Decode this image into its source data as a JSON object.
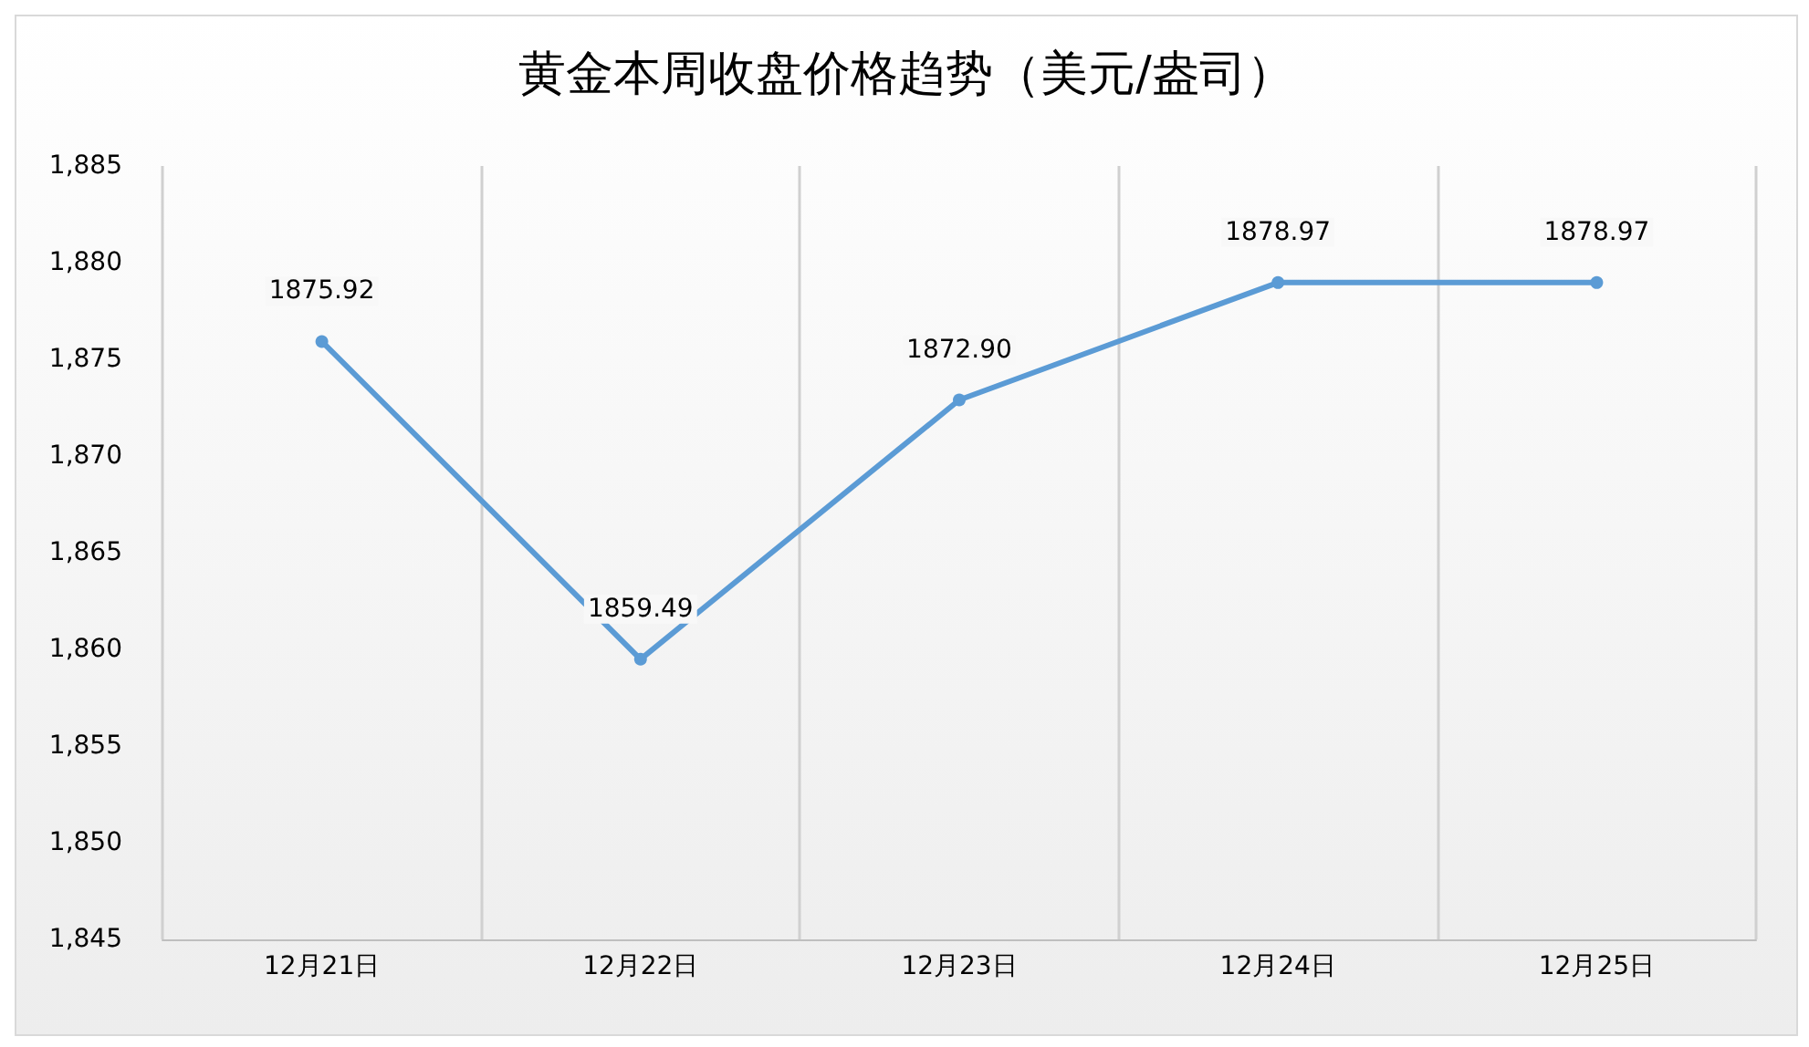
{
  "chart_data": {
    "type": "line",
    "title": "黄金本周收盘价格趋势（美元/盎司）",
    "categories": [
      "12月21日",
      "12月22日",
      "12月23日",
      "12月24日",
      "12月25日"
    ],
    "series": [
      {
        "color": "#5b9bd5",
        "values": [
          1875.92,
          1859.49,
          1872.9,
          1878.97,
          1878.97
        ],
        "value_labels": [
          "1875.92",
          "1859.49",
          "1872.90",
          "1878.97",
          "1878.97"
        ]
      }
    ],
    "ylim": [
      1845,
      1885
    ],
    "yticks": [
      {
        "value": 1845,
        "label": "1,845"
      },
      {
        "value": 1850,
        "label": "1,850"
      },
      {
        "value": 1855,
        "label": "1,855"
      },
      {
        "value": 1860,
        "label": "1,860"
      },
      {
        "value": 1865,
        "label": "1,865"
      },
      {
        "value": 1870,
        "label": "1,870"
      },
      {
        "value": 1875,
        "label": "1,875"
      },
      {
        "value": 1880,
        "label": "1,880"
      },
      {
        "value": 1885,
        "label": "1,885"
      }
    ],
    "grid": "x",
    "marker": "circle",
    "line_style": "solid"
  }
}
